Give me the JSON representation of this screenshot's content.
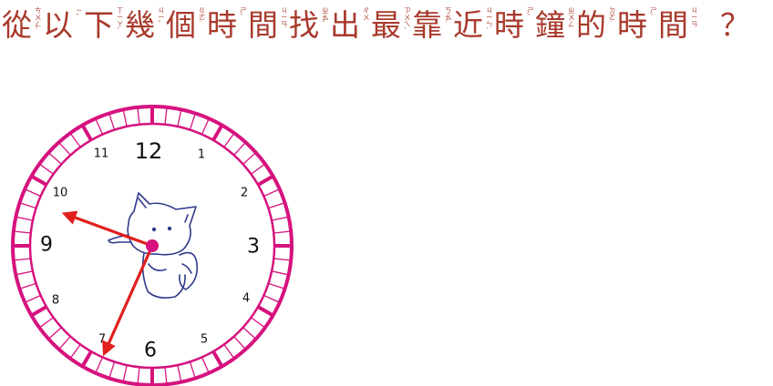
{
  "question": {
    "chars": [
      {
        "c": "從",
        "z": "ㄘㄨㄥˊ"
      },
      {
        "c": "以",
        "z": "ㄧˇ"
      },
      {
        "c": "下",
        "z": "ㄒㄧㄚˋ"
      },
      {
        "c": "幾",
        "z": "ㄐㄧˇ"
      },
      {
        "c": "個",
        "z": "ㄍㄜ˙"
      },
      {
        "c": "時",
        "z": "ㄕˊ"
      },
      {
        "c": "間",
        "z": "ㄐㄧㄢ"
      },
      {
        "c": "找",
        "z": "ㄓㄠˇ"
      },
      {
        "c": "出",
        "z": "ㄔㄨ"
      },
      {
        "c": "最",
        "z": "ㄗㄨㄟˋ"
      },
      {
        "c": "靠",
        "z": "ㄎㄠˋ"
      },
      {
        "c": "近",
        "z": "ㄐㄧㄣˋ"
      },
      {
        "c": "時",
        "z": "ㄕˊ"
      },
      {
        "c": "鐘",
        "z": "ㄓㄨㄥ"
      },
      {
        "c": "的",
        "z": "ㄉㄜ˙"
      },
      {
        "c": "時",
        "z": "ㄕˊ"
      },
      {
        "c": "間",
        "z": "ㄐㄧㄢ"
      },
      {
        "c": "？",
        "z": ""
      }
    ],
    "color": "#a83a2c"
  },
  "clock": {
    "numbers": {
      "12": "12",
      "1": "1",
      "2": "2",
      "3": "3",
      "4": "4",
      "5": "5",
      "6": "6",
      "7": "7",
      "8": "8",
      "9": "9",
      "10": "10",
      "11": "11"
    },
    "hour_hand_hours": 9.67,
    "minute_hand_minutes": 34,
    "ring_color": "#d6127e",
    "hand_color": "#e0201e",
    "drawing_color": "#303a8a"
  }
}
